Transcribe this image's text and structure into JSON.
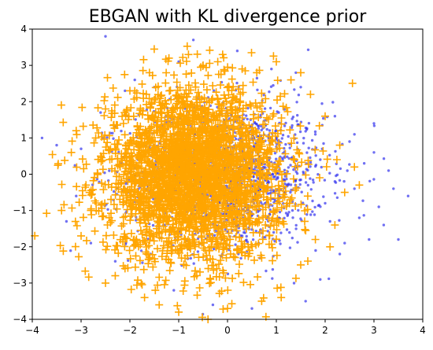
{
  "chart_data": {
    "type": "scatter",
    "title": "EBGAN with KL divergence prior",
    "xlabel": "",
    "ylabel": "",
    "xlim": [
      -4,
      4
    ],
    "ylim": [
      -4,
      4
    ],
    "xticks": [
      -4,
      -3,
      -2,
      -1,
      0,
      1,
      2,
      3,
      4
    ],
    "yticks": [
      -4,
      -3,
      -2,
      -1,
      0,
      1,
      2,
      3,
      4
    ],
    "xtick_labels": [
      "−4",
      "−3",
      "−2",
      "−1",
      "0",
      "1",
      "2",
      "3",
      "4"
    ],
    "ytick_labels": [
      "−4",
      "−3",
      "−2",
      "−1",
      "0",
      "1",
      "2",
      "3",
      "4"
    ],
    "grid": false,
    "series": [
      {
        "marker": "dot",
        "color": "#3333ee",
        "approx_center": [
          0.0,
          0.0
        ],
        "approx_std": [
          1.0,
          1.0
        ],
        "approx_count": 1500,
        "outliers": [
          [
            -3.8,
            1.0
          ],
          [
            -3.5,
            0.8
          ],
          [
            -3.3,
            -1.3
          ],
          [
            -2.5,
            3.8
          ],
          [
            -2.1,
            2.3
          ],
          [
            -1.9,
            2.6
          ],
          [
            -1.5,
            2.4
          ],
          [
            -1.0,
            3.1
          ],
          [
            -0.7,
            3.7
          ],
          [
            0.2,
            3.4
          ],
          [
            0.9,
            2.9
          ],
          [
            1.4,
            2.8
          ],
          [
            1.5,
            2.4
          ],
          [
            1.8,
            1.1
          ],
          [
            1.9,
            0.4
          ],
          [
            2.0,
            -0.8
          ],
          [
            2.1,
            -1.3
          ],
          [
            2.2,
            1.6
          ],
          [
            2.3,
            -2.2
          ],
          [
            2.4,
            -1.9
          ],
          [
            2.5,
            0.9
          ],
          [
            2.6,
            -0.4
          ],
          [
            2.7,
            -1.2
          ],
          [
            2.8,
            0.3
          ],
          [
            2.9,
            -1.8
          ],
          [
            3.0,
            0.6
          ],
          [
            3.1,
            -0.9
          ],
          [
            3.2,
            -1.4
          ],
          [
            3.3,
            0.1
          ],
          [
            3.5,
            -1.8
          ],
          [
            3.7,
            -0.6
          ],
          [
            3.4,
            -0.4
          ],
          [
            3.0,
            1.4
          ],
          [
            2.6,
            1.1
          ],
          [
            1.9,
            -2.9
          ],
          [
            1.6,
            -3.5
          ],
          [
            0.5,
            -3.7
          ],
          [
            -0.3,
            -3.6
          ],
          [
            -1.1,
            -3.2
          ],
          [
            -2.3,
            -2.4
          ],
          [
            -2.8,
            -1.9
          ],
          [
            -3.1,
            -0.6
          ],
          [
            -3.0,
            0.7
          ],
          [
            -2.6,
            1.7
          ],
          [
            2.2,
            -0.2
          ]
        ]
      },
      {
        "marker": "plus",
        "color": "#ffa500",
        "approx_center": [
          -0.7,
          0.0
        ],
        "approx_std": [
          0.9,
          1.15
        ],
        "approx_count": 3000,
        "extreme_points": [
          [
            -3.4,
            -1.0
          ],
          [
            -3.2,
            0.6
          ],
          [
            -3.0,
            -1.7
          ],
          [
            -2.8,
            -1.0
          ],
          [
            -2.7,
            1.0
          ],
          [
            -2.5,
            1.8
          ],
          [
            -2.5,
            -3.0
          ],
          [
            -2.3,
            -2.8
          ],
          [
            -2.0,
            2.3
          ],
          [
            -1.7,
            -3.4
          ],
          [
            -1.6,
            2.8
          ],
          [
            -1.2,
            3.2
          ],
          [
            -1.0,
            -3.8
          ],
          [
            -0.8,
            3.3
          ],
          [
            -0.5,
            3.0
          ],
          [
            -0.4,
            -4.0
          ],
          [
            -0.2,
            3.1
          ],
          [
            0.0,
            -3.7
          ],
          [
            0.3,
            2.9
          ],
          [
            0.6,
            2.8
          ],
          [
            0.7,
            -3.5
          ],
          [
            1.0,
            3.1
          ],
          [
            1.1,
            -3.4
          ],
          [
            1.3,
            2.6
          ],
          [
            1.5,
            -2.5
          ],
          [
            1.7,
            2.2
          ],
          [
            2.0,
            1.6
          ],
          [
            2.2,
            -1.4
          ],
          [
            2.4,
            -0.5
          ],
          [
            2.6,
            0.2
          ],
          [
            2.7,
            -0.3
          ],
          [
            2.3,
            0.8
          ],
          [
            2.1,
            -2.0
          ],
          [
            1.8,
            -1.8
          ],
          [
            -1.4,
            -3.6
          ],
          [
            -2.9,
            -0.3
          ],
          [
            -3.1,
            1.2
          ],
          [
            -2.1,
            -2.6
          ],
          [
            -0.1,
            3.3
          ],
          [
            1.5,
            2.8
          ]
        ]
      }
    ]
  }
}
